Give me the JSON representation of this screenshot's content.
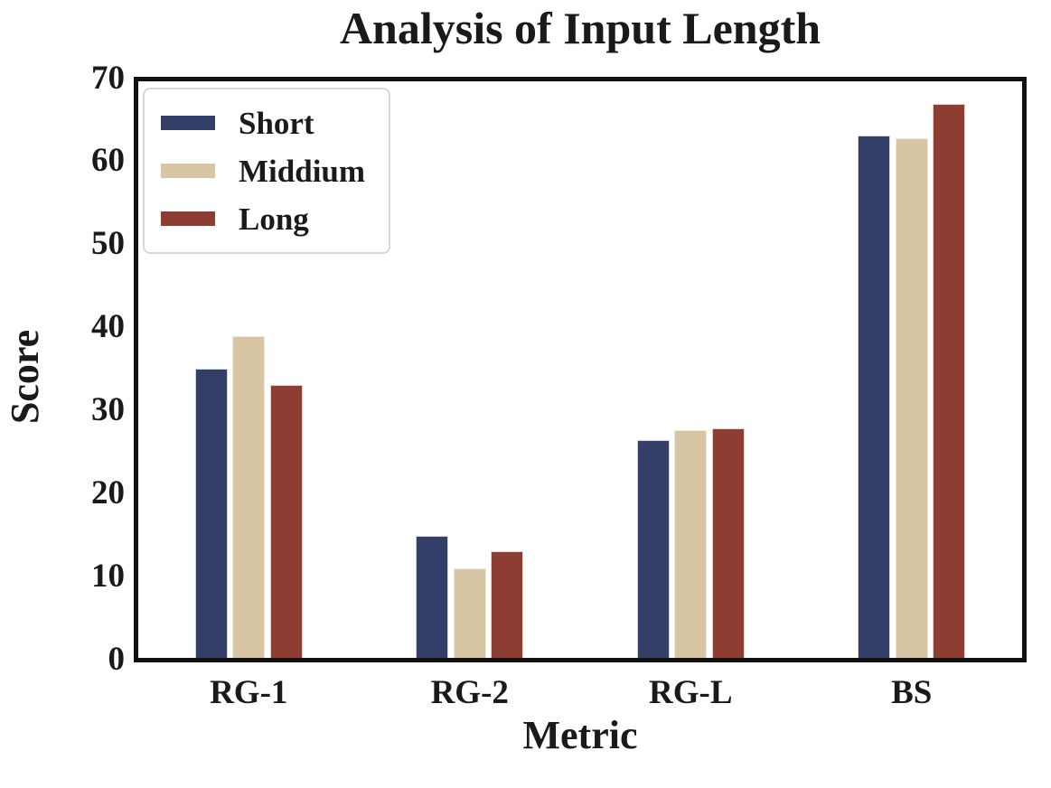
{
  "figure": {
    "title": "Analysis of Input Length",
    "xlabel": "Metric",
    "ylabel": "Score"
  },
  "chart_data": {
    "type": "bar",
    "title": "Analysis of Input Length",
    "xlabel": "Metric",
    "ylabel": "Score",
    "categories": [
      "RG-1",
      "RG-2",
      "RG-L",
      "BS"
    ],
    "series": [
      {
        "name": "Short",
        "color": "#333F68",
        "values": [
          35.1,
          14.8,
          26.4,
          63.4
        ]
      },
      {
        "name": "Middium",
        "color": "#D7C5A4",
        "values": [
          39.1,
          10.9,
          27.6,
          63.1
        ]
      },
      {
        "name": "Long",
        "color": "#8E3D33",
        "values": [
          33.1,
          13.0,
          27.9,
          67.3
        ]
      }
    ],
    "ylim": [
      0,
      70
    ],
    "yticks": [
      0,
      10,
      20,
      30,
      40,
      50,
      60,
      70
    ],
    "grid": false,
    "legend_position": "upper-left",
    "bar_edge_color": "#F0EEEA",
    "spine_color": "#111111",
    "text_color": "#1a1a1a"
  }
}
